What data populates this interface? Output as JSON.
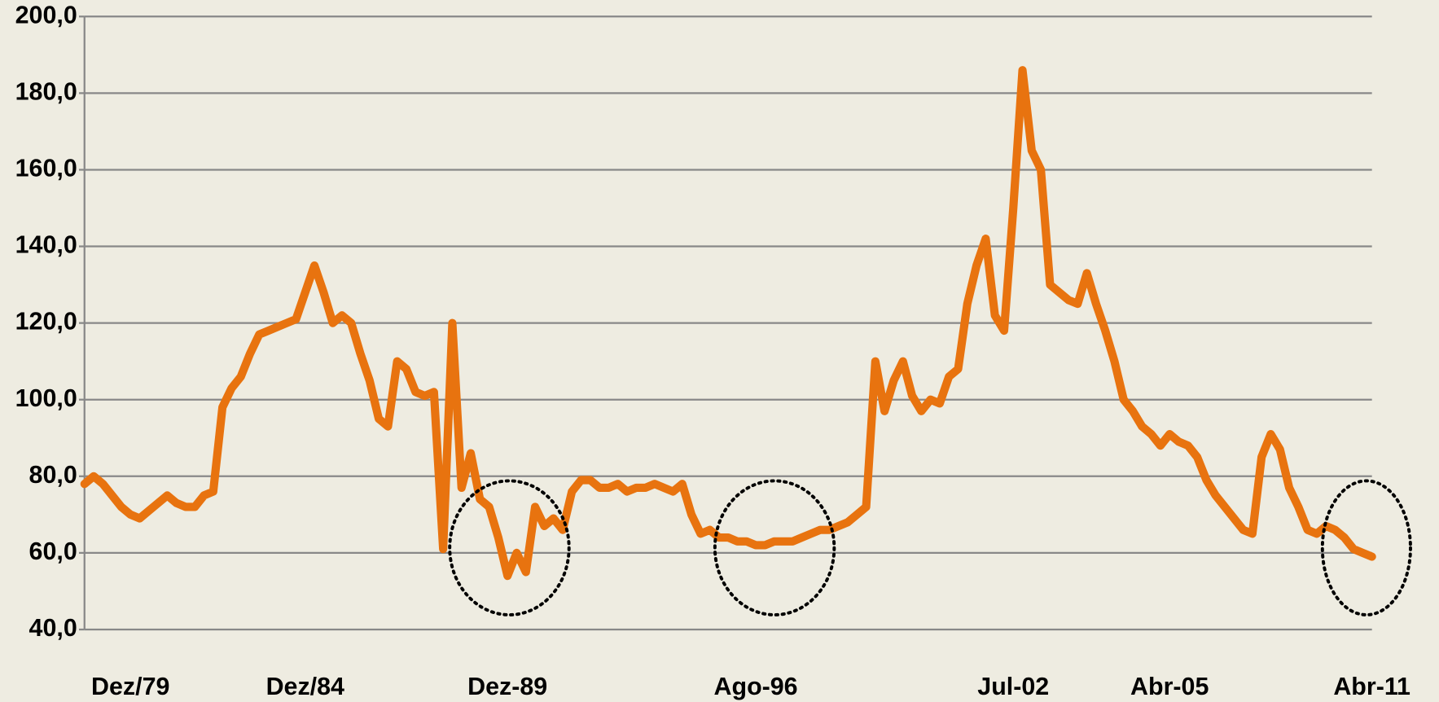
{
  "chart_data": {
    "type": "line",
    "categories": [
      null,
      null,
      null,
      null,
      null,
      "Dez/79",
      null,
      null,
      null,
      null,
      null,
      null,
      null,
      null,
      null,
      null,
      null,
      null,
      null,
      null,
      null,
      null,
      null,
      null,
      "Dez/84",
      null,
      null,
      null,
      null,
      null,
      null,
      null,
      null,
      null,
      null,
      null,
      null,
      null,
      null,
      null,
      null,
      null,
      null,
      null,
      null,
      null,
      "Dez-89",
      null,
      null,
      null,
      null,
      null,
      null,
      null,
      null,
      null,
      null,
      null,
      null,
      null,
      null,
      null,
      null,
      null,
      null,
      null,
      null,
      null,
      null,
      null,
      null,
      null,
      null,
      "Ago-96",
      null,
      null,
      null,
      null,
      null,
      null,
      null,
      null,
      null,
      null,
      null,
      null,
      null,
      null,
      null,
      null,
      null,
      null,
      null,
      null,
      null,
      null,
      null,
      null,
      null,
      null,
      null,
      "Jul-02",
      null,
      null,
      null,
      null,
      null,
      null,
      null,
      null,
      null,
      null,
      null,
      null,
      null,
      null,
      null,
      null,
      "Abr-05",
      null,
      null,
      null,
      null,
      null,
      null,
      null,
      null,
      null,
      null,
      null,
      null,
      null,
      null,
      null,
      null,
      null,
      null,
      null,
      null,
      null,
      "Abr-11"
    ],
    "series": [
      {
        "color": "#e8730f",
        "values": [
          78,
          80,
          78,
          75,
          72,
          70,
          69,
          71,
          73,
          75,
          73,
          72,
          72,
          75,
          76,
          98,
          103,
          106,
          112,
          117,
          118,
          119,
          120,
          121,
          128,
          135,
          128,
          120,
          122,
          120,
          112,
          105,
          95,
          93,
          110,
          108,
          102,
          101,
          102,
          61,
          120,
          77,
          86,
          74,
          72,
          64,
          54,
          60,
          55,
          72,
          67,
          69,
          66,
          76,
          79,
          79,
          77,
          77,
          78,
          76,
          77,
          77,
          78,
          77,
          76,
          78,
          70,
          65,
          66,
          64,
          64,
          63,
          63,
          62,
          62,
          63,
          63,
          63,
          64,
          65,
          66,
          66,
          67,
          68,
          70,
          72,
          110,
          97,
          105,
          110,
          101,
          97,
          100,
          99,
          106,
          108,
          125,
          135,
          142,
          122,
          118,
          150,
          186,
          165,
          160,
          130,
          128,
          126,
          125,
          133,
          125,
          118,
          110,
          100,
          97,
          93,
          91,
          88,
          91,
          89,
          88,
          85,
          79,
          75,
          72,
          69,
          66,
          65,
          85,
          91,
          87,
          77,
          72,
          66,
          65,
          67,
          66,
          64,
          61,
          60,
          59
        ]
      }
    ],
    "ylim": [
      40,
      200
    ],
    "yticks": [
      {
        "value": 40,
        "label": "40,0"
      },
      {
        "value": 60,
        "label": "60,0"
      },
      {
        "value": 80,
        "label": "80,0"
      },
      {
        "value": 100,
        "label": "100,0"
      },
      {
        "value": 120,
        "label": "120,0"
      },
      {
        "value": 140,
        "label": "140,0"
      },
      {
        "value": 160,
        "label": "160,0"
      },
      {
        "value": 180,
        "label": "180,0"
      },
      {
        "value": 200,
        "label": "200,0"
      }
    ],
    "grid": true
  }
}
